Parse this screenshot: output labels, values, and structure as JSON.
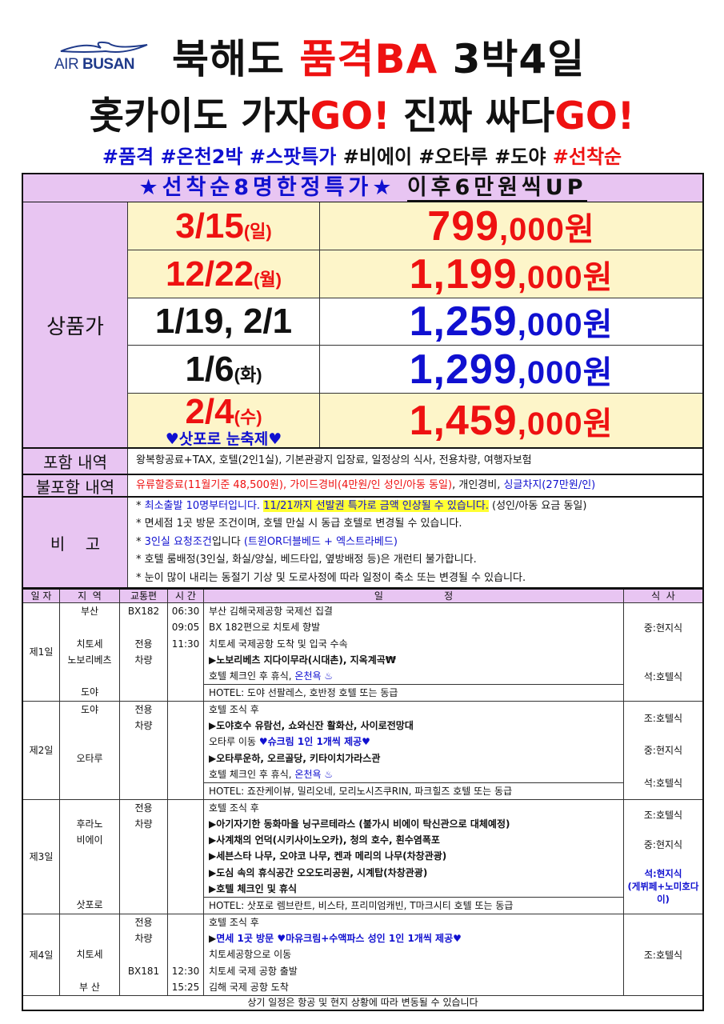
{
  "logo": {
    "text1": "AIR",
    "text2": "BUSAN",
    "icon": "seagull-icon"
  },
  "title": {
    "part1": "북해도 ",
    "part2": "품격BA",
    "part3": " 3박4일"
  },
  "subtitle": {
    "part1": "홋카이도 가자",
    "part2": "GO!",
    "part3": " 진짜 싸다",
    "part4": "GO!"
  },
  "hashtags": {
    "blue": "#품격 #온천2박 #스팟특가",
    "black": " #비에이 #오타루 #도야 ",
    "red": "#선착순"
  },
  "banner": {
    "special": "★선착순8명한정특가★",
    "after": "이후6만원씩UP"
  },
  "prices": {
    "label": "상품가",
    "rows": [
      {
        "date": "3/15",
        "day": "(일)",
        "main": "799",
        "rest": ",000원",
        "date_color": "#ee1111",
        "price_color": "#ee1111",
        "highlight": true
      },
      {
        "date": "12/22",
        "day": "(월)",
        "main": "1,199",
        "rest": ",000원",
        "date_color": "#ee1111",
        "price_color": "#ee1111",
        "highlight": true
      },
      {
        "date": "1/19, 2/1",
        "day": "",
        "main": "1,259",
        "rest": ",000원",
        "date_color": "#111111",
        "price_color": "#1010d0",
        "highlight": false
      },
      {
        "date": "1/6",
        "day": "(화)",
        "main": "1,299",
        "rest": ",000원",
        "date_color": "#111111",
        "price_color": "#1010d0",
        "highlight": false
      },
      {
        "date": "2/4",
        "day": "(수)",
        "note": "♥삿포로 눈축제♥",
        "main": "1,459",
        "rest": ",000원",
        "date_color": "#ee1111",
        "price_color": "#ee1111",
        "highlight": true
      }
    ]
  },
  "included": {
    "label": "포함 내역",
    "text": "왕복항공료+TAX, 호텔(2인1실), 기본관광지 입장료, 일정상의 식사, 전용차량, 여행자보험"
  },
  "excluded": {
    "label": "불포함 내역",
    "red": "유류할증료(11월기준 48,500원), 가이드경비(4만원/인 성인/아동 동일)",
    "black": ", 개인경비, ",
    "blue": "싱글차지(27만원/인)"
  },
  "remarks": {
    "label": "비    고",
    "lines": [
      [
        {
          "t": "* ",
          "s": ""
        },
        {
          "t": "최소출발 10명부터입니다. ",
          "s": "sbl"
        },
        {
          "t": "11/21까지 선발권 특가로 금액 인상될 수 있습니다.",
          "s": "hl sbl"
        },
        {
          "t": " (성인/아동 요금 동일)",
          "s": ""
        }
      ],
      [
        {
          "t": "* 면세점 1곳 방문 조건이며, 호텔 만실 시 동급 호텔로 변경될 수 있습니다.",
          "s": ""
        }
      ],
      [
        {
          "t": "* ",
          "s": ""
        },
        {
          "t": "3인실 요청조건",
          "s": "sbl"
        },
        {
          "t": "입니다 ",
          "s": ""
        },
        {
          "t": "(트윈OR더블베드 + 엑스트라베드)",
          "s": "sbl"
        }
      ],
      [
        {
          "t": "* 호텔 룸배정(3인실, 화실/양실, 베드타입, 옆방배정 등)은 개런티 불가합니다.",
          "s": ""
        }
      ],
      [
        {
          "t": "* 눈이 많이 내리는 동절기 기상 및 도로사정에 따라 일정이 축소 또는 변경될 수 있습니다.",
          "s": ""
        }
      ]
    ]
  },
  "itinerary": {
    "headers": [
      "일 자",
      "지  역",
      "교통편",
      "시 간",
      "일                    정",
      "식  사"
    ],
    "days": [
      {
        "day": "제1일",
        "region": [
          "부산",
          "",
          "치토세",
          "노보리베츠",
          "",
          "도야"
        ],
        "transport": [
          "BX182",
          "",
          "전용",
          "차량",
          "",
          ""
        ],
        "time": [
          "06:30",
          "09:05",
          "11:30",
          "",
          "",
          ""
        ],
        "schedule": [
          [
            {
              "t": "부산 김해국제공항 국제선 집결",
              "s": ""
            }
          ],
          [
            {
              "t": "BX 182편으로 치토세 향발",
              "s": ""
            }
          ],
          [
            {
              "t": "치토세 국제공항 도착 및 입국 수속",
              "s": ""
            }
          ],
          [
            {
              "t": "▶노보리베츠 지다이무라(시대촌), 지옥계곡₩",
              "s": "sb"
            }
          ],
          [
            {
              "t": "호텔 체크인 후 휴식, ",
              "s": ""
            },
            {
              "t": "온천욕 ♨",
              "s": "sbl"
            }
          ],
          [
            {
              "t": "HOTEL:  도야 선팔레스, 호반정 호텔 또는 동급",
              "s": ""
            }
          ]
        ],
        "meals": [
          "중:현지식",
          "석:호텔식"
        ]
      },
      {
        "day": "제2일",
        "region": [
          "도야",
          "",
          "",
          "오타루",
          "",
          ""
        ],
        "transport": [
          "전용",
          "차량",
          "",
          "",
          "",
          ""
        ],
        "time": [
          "",
          "",
          "",
          "",
          "",
          ""
        ],
        "schedule": [
          [
            {
              "t": "호텔 조식 후",
              "s": ""
            }
          ],
          [
            {
              "t": "▶도야호수 유람선, 쇼와신잔 활화산, 사이로전망대",
              "s": "sb"
            }
          ],
          [
            {
              "t": "오타루 이동 ",
              "s": ""
            },
            {
              "t": "♥슈크림 1인 1개씩 제공♥",
              "s": "sbb"
            }
          ],
          [
            {
              "t": "▶오타루운하, 오르골당, 키타이치가라스관",
              "s": "sb"
            }
          ],
          [
            {
              "t": "호텔 체크인 후 휴식, ",
              "s": ""
            },
            {
              "t": "온천욕 ♨",
              "s": "sbl"
            }
          ],
          [
            {
              "t": "HOTEL: 죠잔케이뷰, 밀리오네, 모리노시즈쿠RIN, 파크힐즈 호텔 또는 동급",
              "s": ""
            }
          ]
        ],
        "meals": [
          "조:호텔식",
          "중:현지식",
          "석:호텔식"
        ]
      },
      {
        "day": "제3일",
        "region": [
          "",
          "후라노",
          "비에이",
          "",
          "",
          "",
          "삿포로"
        ],
        "transport": [
          "전용",
          "차량",
          "",
          "",
          "",
          "",
          ""
        ],
        "time": [
          "",
          "",
          "",
          "",
          "",
          "",
          ""
        ],
        "schedule": [
          [
            {
              "t": "호텔 조식 후",
              "s": ""
            }
          ],
          [
            {
              "t": "▶아기자기한 동화마을 닝구르테라스 (불가시 비에이 탁신관으로 대체예정)",
              "s": "sb"
            }
          ],
          [
            {
              "t": "▶사계채의 언덕(시키사이노오카), 청의 호수, 흰수염폭포",
              "s": "sb"
            }
          ],
          [
            {
              "t": "▶세븐스타 나무, 오야코 나무, 켄과 메리의 나무(차창관광)",
              "s": "sb"
            }
          ],
          [
            {
              "t": "▶도심 속의 휴식공간 오오도리공원, 시계탑(차창관광)",
              "s": "sb"
            }
          ],
          [
            {
              "t": "▶호텔 체크인 및 휴식",
              "s": "sb"
            }
          ],
          [
            {
              "t": "HOTEL: 삿포로 렘브란트, 비스타, 프리미엄캐빈, T마크시티 호텔 또는 동급",
              "s": ""
            }
          ]
        ],
        "meals": [
          "조:호텔식",
          "중:현지식",
          "석:현지식\n(게뷔페+노미호다이)"
        ]
      },
      {
        "day": "제4일",
        "region": [
          "",
          "",
          "치토세",
          "",
          "부  산"
        ],
        "transport": [
          "전용",
          "차량",
          "",
          "BX181",
          ""
        ],
        "time": [
          "",
          "",
          "",
          "12:30",
          "15:25"
        ],
        "schedule": [
          [
            {
              "t": "호텔 조식 후",
              "s": ""
            }
          ],
          [
            {
              "t": "▶",
              "s": "sb"
            },
            {
              "t": "면세 1곳 방문     ♥마유크림+수액파스 성인 1인 1개씩 제공♥",
              "s": "sbb"
            }
          ],
          [
            {
              "t": "치토세공항으로 이동",
              "s": ""
            }
          ],
          [
            {
              "t": "치토세 국제 공항 출발",
              "s": ""
            }
          ],
          [
            {
              "t": "김해 국제 공항 도착",
              "s": ""
            }
          ]
        ],
        "meals": [
          "조:호텔식"
        ]
      }
    ],
    "footer": "상기 일정은 항공 및 현지 상황에 따라 변동될 수 있습니다"
  },
  "colors": {
    "accent_red": "#ee1111",
    "accent_blue": "#1010d0",
    "pink_bg": "#e8c5f2",
    "yellow_bg": "#fdf5c9"
  }
}
